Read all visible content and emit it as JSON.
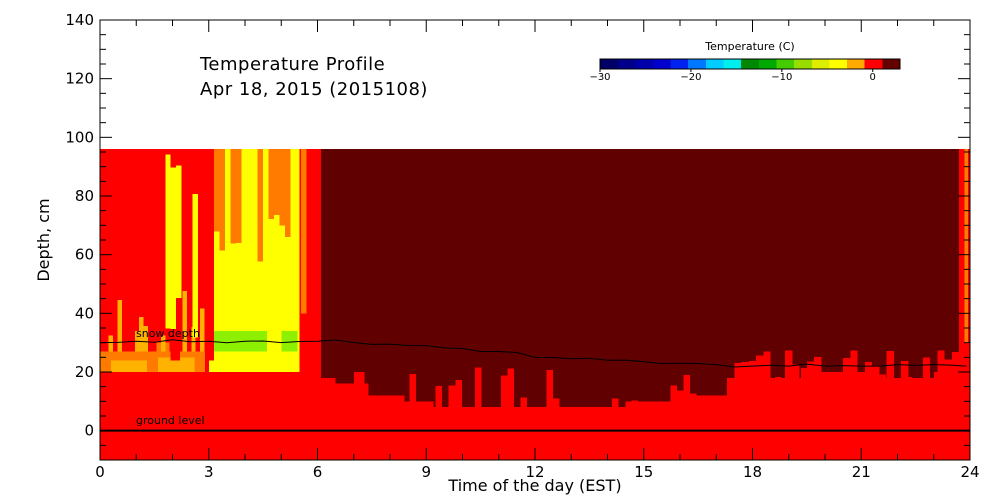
{
  "chart_data": {
    "type": "heatmap",
    "title": "Temperature Profile",
    "subtitle": "Apr 18, 2015 (2015108)",
    "xlabel": "Time of the day (EST)",
    "ylabel": "Depth, cm",
    "xlim": [
      0,
      24
    ],
    "ylim": [
      -10,
      140
    ],
    "x_ticks": [
      0,
      3,
      6,
      9,
      12,
      15,
      18,
      21,
      24
    ],
    "y_ticks": [
      0,
      20,
      40,
      60,
      80,
      100,
      120,
      140
    ],
    "colorbar": {
      "title": "Temperature (C)",
      "range": [
        -30,
        3
      ],
      "ticks": [
        -30,
        -20,
        -10,
        0
      ],
      "colors": [
        "#000066",
        "#000088",
        "#0000aa",
        "#0000cc",
        "#0022ee",
        "#0077ff",
        "#00ccff",
        "#00eeee",
        "#008800",
        "#00aa00",
        "#44cc00",
        "#99dd00",
        "#ddee00",
        "#ffff00",
        "#ffaa00",
        "#ff0000",
        "#660000"
      ]
    },
    "cell_regions": [
      {
        "x": [
          0,
          24
        ],
        "y": [
          -10,
          20
        ],
        "temp": "red"
      },
      {
        "x": [
          0,
          3.0
        ],
        "y": [
          20,
          96
        ],
        "temp": "red"
      },
      {
        "x": [
          3.0,
          5.5
        ],
        "y": [
          20,
          96
        ],
        "temp": "yellow"
      },
      {
        "x": [
          3.0,
          5.5
        ],
        "y": [
          27,
          34
        ],
        "temp": "lightgreen"
      },
      {
        "x": [
          5.5,
          6.1
        ],
        "y": [
          20,
          96
        ],
        "temp": "red"
      },
      {
        "x": [
          6.1,
          23.7
        ],
        "y": [
          8,
          96
        ],
        "temp": "darkred"
      },
      {
        "x": [
          23.7,
          24
        ],
        "y": [
          20,
          96
        ],
        "temp": "red"
      }
    ],
    "lines": [
      {
        "name": "snow depth",
        "x": [
          0,
          1,
          2,
          3,
          4,
          5,
          6,
          7,
          8,
          9,
          10,
          11,
          12,
          13,
          14,
          15,
          16,
          17,
          18,
          19,
          20,
          21,
          22,
          23,
          23.9
        ],
        "y": [
          30,
          30.5,
          31,
          30.5,
          30.5,
          30,
          30.5,
          30,
          29.5,
          29,
          28,
          27,
          25,
          24.5,
          24,
          23.5,
          23,
          22.5,
          22,
          22,
          22,
          22,
          22.5,
          22.5,
          22
        ],
        "color": "#000000"
      },
      {
        "name": "ground level",
        "x": [
          0,
          24
        ],
        "y": [
          0,
          0
        ],
        "color": "#000000"
      }
    ]
  },
  "colors": {
    "darkred": "#600000",
    "red": "#ff0000",
    "orange": "#ff7b00",
    "lightorange": "#ffb300",
    "yellow": "#ffff00",
    "lightgreen": "#8cf000",
    "background": "#ffffff"
  }
}
